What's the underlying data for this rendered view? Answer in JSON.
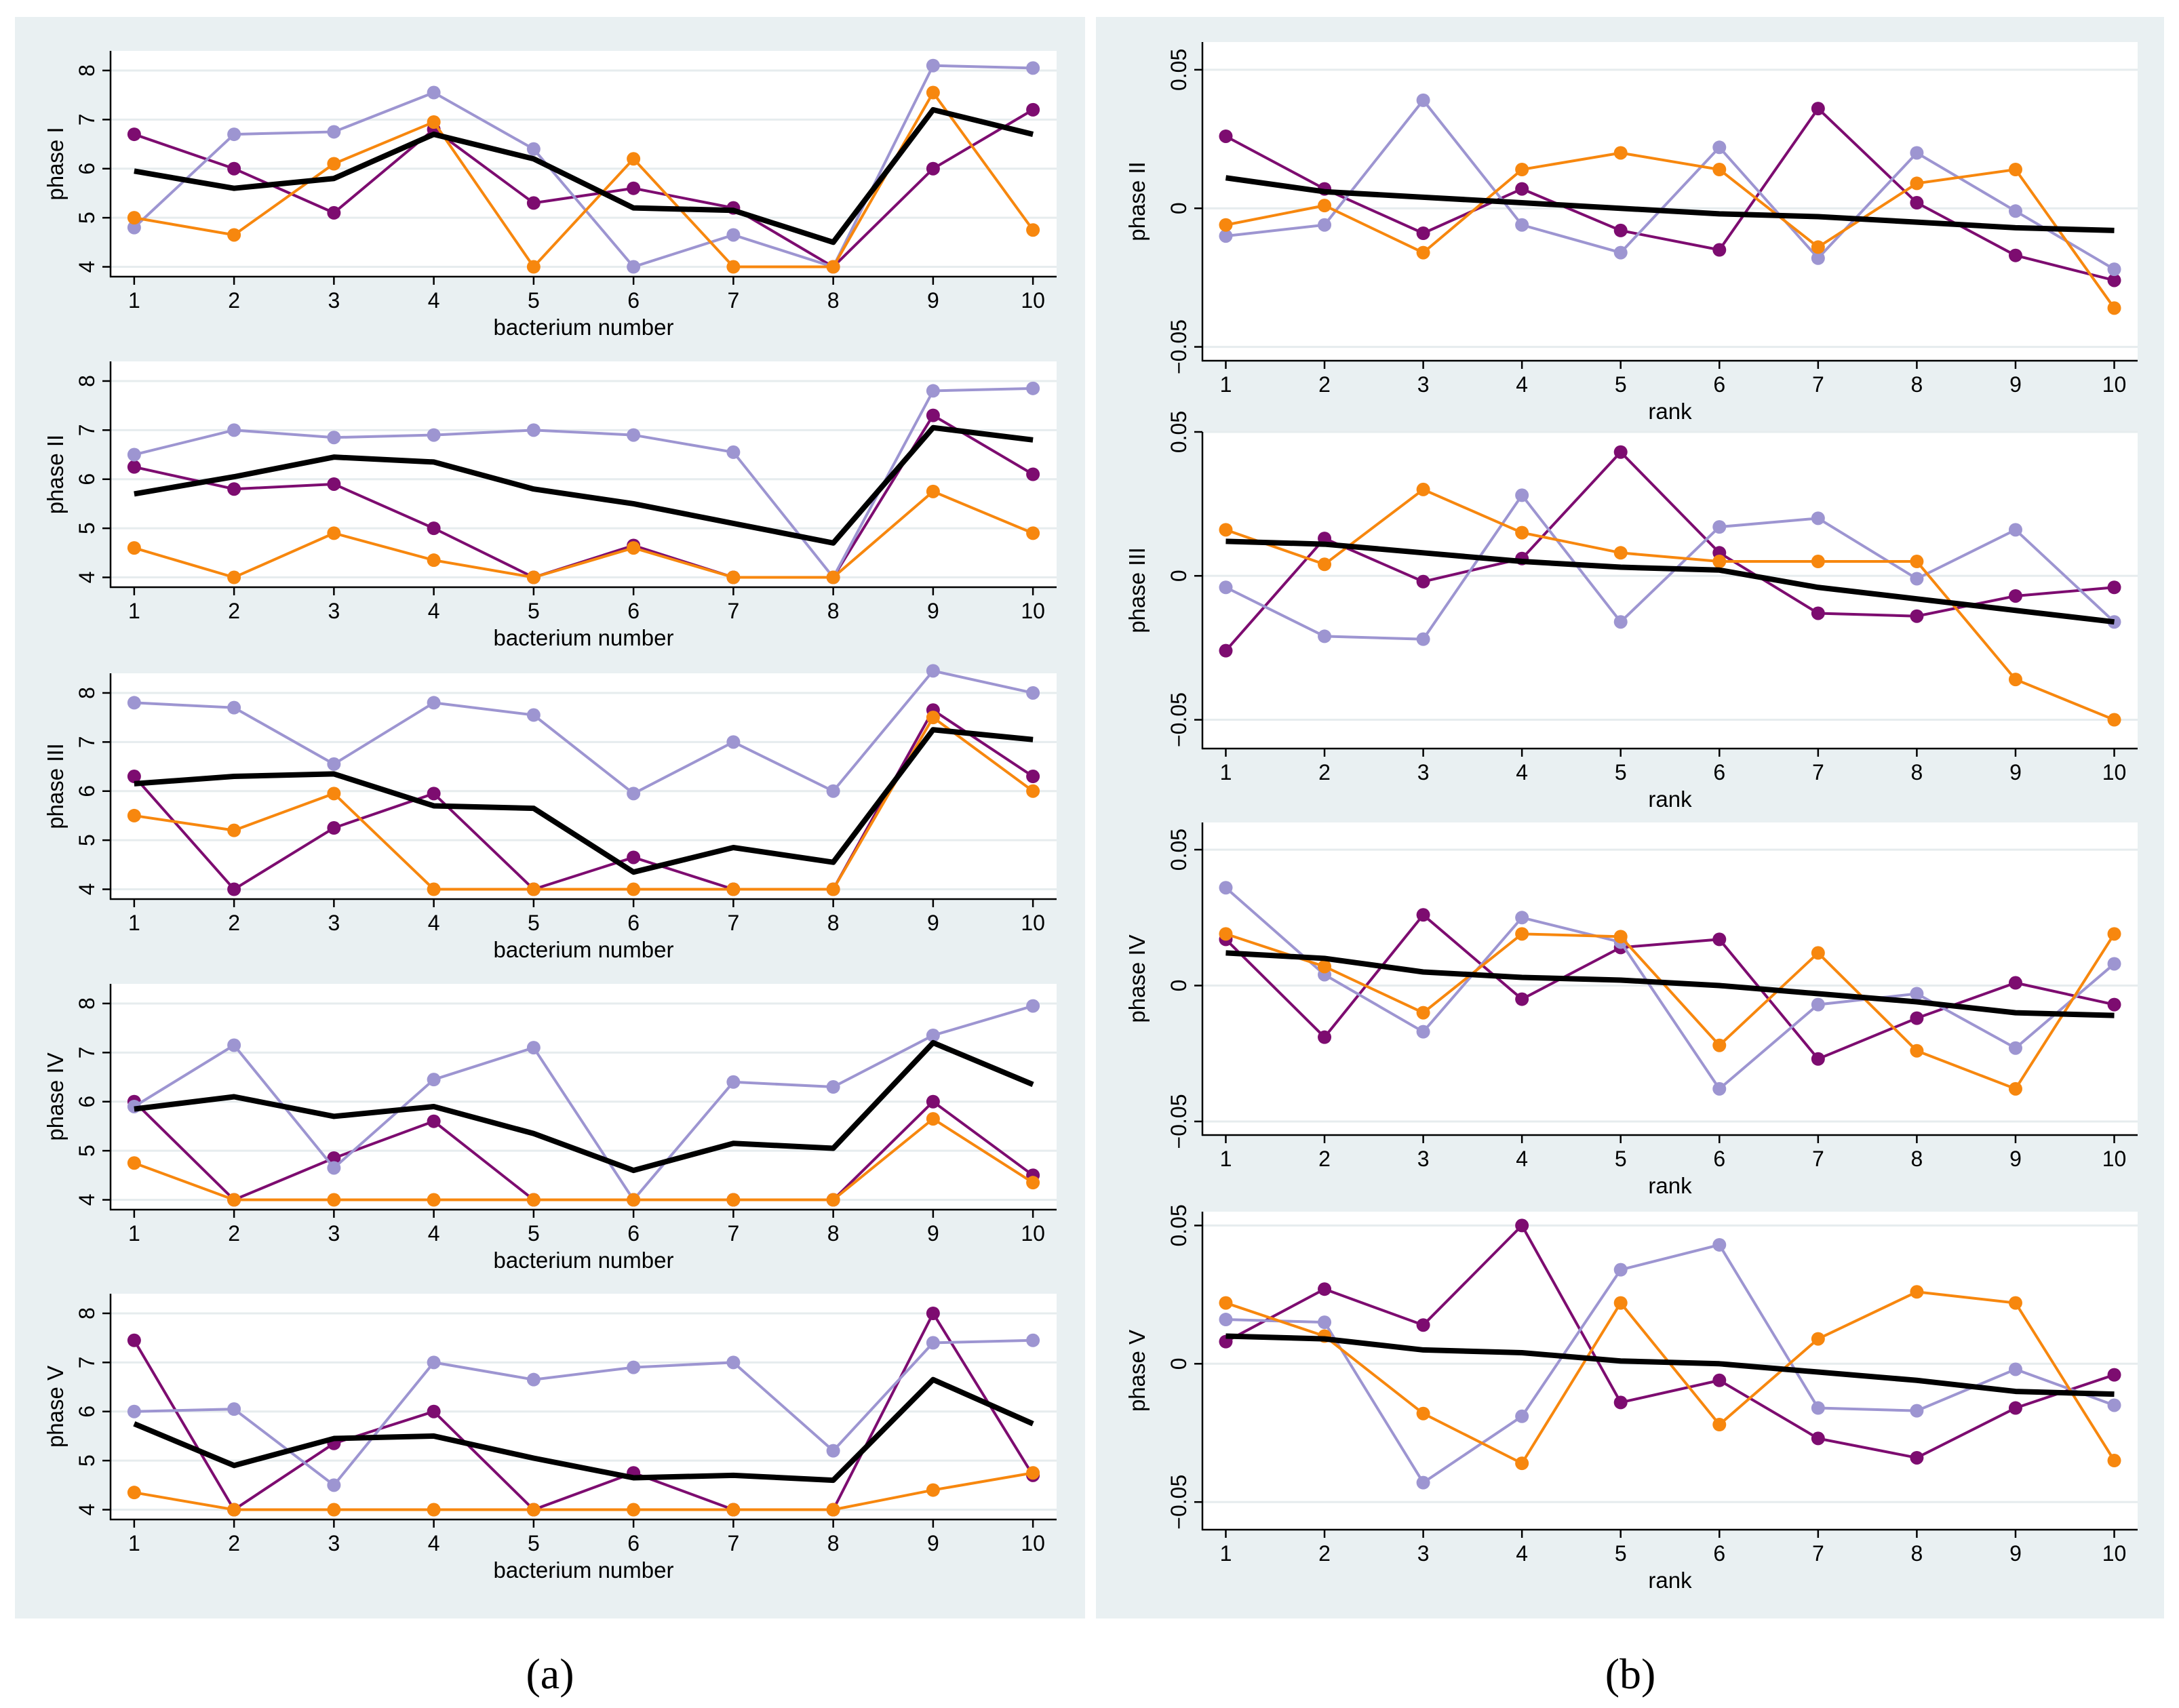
{
  "colors": {
    "purple": "#7d0c70",
    "lavender": "#9d95d1",
    "orange": "#f7870e",
    "mean": "#000000",
    "panel_bg": "#e9f0f2",
    "plot_bg": "#ffffff",
    "grid": "#e6ecee"
  },
  "panel_labels": {
    "a": "(a)",
    "b": "(b)"
  },
  "series_names": [
    "purple",
    "lavender",
    "orange",
    "mean"
  ],
  "chart_data": [
    {
      "type": "line",
      "panel": "a",
      "ylabel": "phase I",
      "xlabel": "bacterium number",
      "x": [
        1,
        2,
        3,
        4,
        5,
        6,
        7,
        8,
        9,
        10
      ],
      "ylim": [
        3.8,
        8.4
      ],
      "yticks": [
        4,
        5,
        6,
        7,
        8
      ],
      "series": [
        {
          "name": "purple",
          "values": [
            6.7,
            6.0,
            5.1,
            6.8,
            5.3,
            5.6,
            5.2,
            4.0,
            6.0,
            7.2
          ]
        },
        {
          "name": "lavender",
          "values": [
            4.8,
            6.7,
            6.75,
            7.55,
            6.4,
            4.0,
            4.65,
            4.0,
            8.1,
            8.05
          ]
        },
        {
          "name": "orange",
          "values": [
            5.0,
            4.65,
            6.1,
            6.95,
            4.0,
            6.2,
            4.0,
            4.0,
            7.55,
            4.75
          ]
        },
        {
          "name": "mean",
          "values": [
            5.95,
            5.6,
            5.8,
            6.7,
            6.2,
            5.2,
            5.15,
            4.5,
            7.2,
            6.7
          ]
        }
      ]
    },
    {
      "type": "line",
      "panel": "a",
      "ylabel": "phase II",
      "xlabel": "bacterium number",
      "x": [
        1,
        2,
        3,
        4,
        5,
        6,
        7,
        8,
        9,
        10
      ],
      "ylim": [
        3.8,
        8.4
      ],
      "yticks": [
        4,
        5,
        6,
        7,
        8
      ],
      "series": [
        {
          "name": "purple",
          "values": [
            6.25,
            5.8,
            5.9,
            5.0,
            4.0,
            4.65,
            4.0,
            4.0,
            7.3,
            6.1
          ]
        },
        {
          "name": "lavender",
          "values": [
            6.5,
            7.0,
            6.85,
            6.9,
            7.0,
            6.9,
            6.55,
            4.0,
            7.8,
            7.85
          ]
        },
        {
          "name": "orange",
          "values": [
            4.6,
            4.0,
            4.9,
            4.35,
            4.0,
            4.6,
            4.0,
            4.0,
            5.75,
            4.9
          ]
        },
        {
          "name": "mean",
          "values": [
            5.7,
            6.05,
            6.45,
            6.35,
            5.8,
            5.5,
            5.1,
            4.7,
            7.05,
            6.8
          ]
        }
      ]
    },
    {
      "type": "line",
      "panel": "a",
      "ylabel": "phase III",
      "xlabel": "bacterium number",
      "x": [
        1,
        2,
        3,
        4,
        5,
        6,
        7,
        8,
        9,
        10
      ],
      "ylim": [
        3.8,
        8.4
      ],
      "yticks": [
        4,
        5,
        6,
        7,
        8
      ],
      "series": [
        {
          "name": "purple",
          "values": [
            6.3,
            4.0,
            5.25,
            5.95,
            4.0,
            4.65,
            4.0,
            4.0,
            7.65,
            6.3
          ]
        },
        {
          "name": "lavender",
          "values": [
            7.8,
            7.7,
            6.55,
            7.8,
            7.55,
            5.95,
            7.0,
            6.0,
            8.45,
            8.0
          ]
        },
        {
          "name": "orange",
          "values": [
            5.5,
            5.2,
            5.95,
            4.0,
            4.0,
            4.0,
            4.0,
            4.0,
            7.5,
            6.0
          ]
        },
        {
          "name": "mean",
          "values": [
            6.15,
            6.3,
            6.35,
            5.7,
            5.65,
            4.35,
            4.85,
            4.55,
            7.25,
            7.05
          ]
        }
      ]
    },
    {
      "type": "line",
      "panel": "a",
      "ylabel": "phase IV",
      "xlabel": "bacterium number",
      "x": [
        1,
        2,
        3,
        4,
        5,
        6,
        7,
        8,
        9,
        10
      ],
      "ylim": [
        3.8,
        8.4
      ],
      "yticks": [
        4,
        5,
        6,
        7,
        8
      ],
      "series": [
        {
          "name": "purple",
          "values": [
            6.0,
            4.0,
            4.85,
            5.6,
            4.0,
            4.0,
            4.0,
            4.0,
            6.0,
            4.5
          ]
        },
        {
          "name": "lavender",
          "values": [
            5.9,
            7.15,
            4.65,
            6.45,
            7.1,
            4.0,
            6.4,
            6.3,
            7.35,
            7.95
          ]
        },
        {
          "name": "orange",
          "values": [
            4.75,
            4.0,
            4.0,
            4.0,
            4.0,
            4.0,
            4.0,
            4.0,
            5.65,
            4.35
          ]
        },
        {
          "name": "mean",
          "values": [
            5.85,
            6.1,
            5.7,
            5.9,
            5.35,
            4.6,
            5.15,
            5.05,
            7.2,
            6.35
          ]
        }
      ]
    },
    {
      "type": "line",
      "panel": "a",
      "ylabel": "phase V",
      "xlabel": "bacterium number",
      "x": [
        1,
        2,
        3,
        4,
        5,
        6,
        7,
        8,
        9,
        10
      ],
      "ylim": [
        3.8,
        8.4
      ],
      "yticks": [
        4,
        5,
        6,
        7,
        8
      ],
      "series": [
        {
          "name": "purple",
          "values": [
            7.45,
            4.0,
            5.35,
            6.0,
            4.0,
            4.75,
            4.0,
            4.0,
            8.0,
            4.7
          ]
        },
        {
          "name": "lavender",
          "values": [
            6.0,
            6.05,
            4.5,
            7.0,
            6.65,
            6.9,
            7.0,
            5.2,
            7.4,
            7.45
          ]
        },
        {
          "name": "orange",
          "values": [
            4.35,
            4.0,
            4.0,
            4.0,
            4.0,
            4.0,
            4.0,
            4.0,
            4.4,
            4.75
          ]
        },
        {
          "name": "mean",
          "values": [
            5.75,
            4.9,
            5.45,
            5.5,
            5.05,
            4.65,
            4.7,
            4.6,
            6.65,
            5.75
          ]
        }
      ]
    },
    {
      "type": "line",
      "panel": "b",
      "ylabel": "phase II",
      "xlabel": "rank",
      "x": [
        1,
        2,
        3,
        4,
        5,
        6,
        7,
        8,
        9,
        10
      ],
      "ylim": [
        -0.055,
        0.06
      ],
      "yticks": [
        -0.05,
        0,
        0.05
      ],
      "ytick_labels": [
        "−0.05",
        "0",
        "0.05"
      ],
      "series": [
        {
          "name": "purple",
          "values": [
            0.026,
            0.007,
            -0.009,
            0.007,
            -0.008,
            -0.015,
            0.036,
            0.002,
            -0.017,
            -0.026
          ]
        },
        {
          "name": "lavender",
          "values": [
            -0.01,
            -0.006,
            0.039,
            -0.006,
            -0.016,
            0.022,
            -0.018,
            0.02,
            -0.001,
            -0.022
          ]
        },
        {
          "name": "orange",
          "values": [
            -0.006,
            0.001,
            -0.016,
            0.014,
            0.02,
            0.014,
            -0.014,
            0.009,
            0.014,
            -0.036
          ]
        },
        {
          "name": "mean",
          "values": [
            0.011,
            0.006,
            0.004,
            0.002,
            0.0,
            -0.002,
            -0.003,
            -0.005,
            -0.007,
            -0.008
          ]
        }
      ]
    },
    {
      "type": "line",
      "panel": "b",
      "ylabel": "phase III",
      "xlabel": "rank",
      "x": [
        1,
        2,
        3,
        4,
        5,
        6,
        7,
        8,
        9,
        10
      ],
      "ylim": [
        -0.06,
        0.05
      ],
      "yticks": [
        -0.05,
        0,
        0.05
      ],
      "ytick_labels": [
        "−0.05",
        "0",
        "0.05"
      ],
      "series": [
        {
          "name": "purple",
          "values": [
            -0.026,
            0.013,
            -0.002,
            0.006,
            0.043,
            0.008,
            -0.013,
            -0.014,
            -0.007,
            -0.004
          ]
        },
        {
          "name": "lavender",
          "values": [
            -0.004,
            -0.021,
            -0.022,
            0.028,
            -0.016,
            0.017,
            0.02,
            -0.001,
            0.016,
            -0.016
          ]
        },
        {
          "name": "orange",
          "values": [
            0.016,
            0.004,
            0.03,
            0.015,
            0.008,
            0.005,
            0.005,
            0.005,
            -0.036,
            -0.05
          ]
        },
        {
          "name": "mean",
          "values": [
            0.012,
            0.011,
            0.008,
            0.005,
            0.003,
            0.002,
            -0.004,
            -0.008,
            -0.012,
            -0.016
          ]
        }
      ]
    },
    {
      "type": "line",
      "panel": "b",
      "ylabel": "phase IV",
      "xlabel": "rank",
      "x": [
        1,
        2,
        3,
        4,
        5,
        6,
        7,
        8,
        9,
        10
      ],
      "ylim": [
        -0.055,
        0.06
      ],
      "yticks": [
        -0.05,
        0,
        0.05
      ],
      "ytick_labels": [
        "−0.05",
        "0",
        "0.05"
      ],
      "series": [
        {
          "name": "purple",
          "values": [
            0.017,
            -0.019,
            0.026,
            -0.005,
            0.014,
            0.017,
            -0.027,
            -0.012,
            0.001,
            -0.007
          ]
        },
        {
          "name": "lavender",
          "values": [
            0.036,
            0.004,
            -0.017,
            0.025,
            0.016,
            -0.038,
            -0.007,
            -0.003,
            -0.023,
            0.008
          ]
        },
        {
          "name": "orange",
          "values": [
            0.019,
            0.007,
            -0.01,
            0.019,
            0.018,
            -0.022,
            0.012,
            -0.024,
            -0.038,
            0.019
          ]
        },
        {
          "name": "mean",
          "values": [
            0.012,
            0.01,
            0.005,
            0.003,
            0.002,
            0.0,
            -0.003,
            -0.006,
            -0.01,
            -0.011
          ]
        }
      ]
    },
    {
      "type": "line",
      "panel": "b",
      "ylabel": "phase V",
      "xlabel": "rank",
      "x": [
        1,
        2,
        3,
        4,
        5,
        6,
        7,
        8,
        9,
        10
      ],
      "ylim": [
        -0.06,
        0.055
      ],
      "yticks": [
        -0.05,
        0,
        0.05
      ],
      "ytick_labels": [
        "−0.05",
        "0",
        "0.05"
      ],
      "series": [
        {
          "name": "purple",
          "values": [
            0.008,
            0.027,
            0.014,
            0.05,
            -0.014,
            -0.006,
            -0.027,
            -0.034,
            -0.016,
            -0.004
          ]
        },
        {
          "name": "lavender",
          "values": [
            0.016,
            0.015,
            -0.043,
            -0.019,
            0.034,
            0.043,
            -0.016,
            -0.017,
            -0.002,
            -0.015
          ]
        },
        {
          "name": "orange",
          "values": [
            0.022,
            0.01,
            -0.018,
            -0.036,
            0.022,
            -0.022,
            0.009,
            0.026,
            0.022,
            -0.035
          ]
        },
        {
          "name": "mean",
          "values": [
            0.01,
            0.009,
            0.005,
            0.004,
            0.001,
            0.0,
            -0.003,
            -0.006,
            -0.01,
            -0.011
          ]
        }
      ]
    }
  ]
}
